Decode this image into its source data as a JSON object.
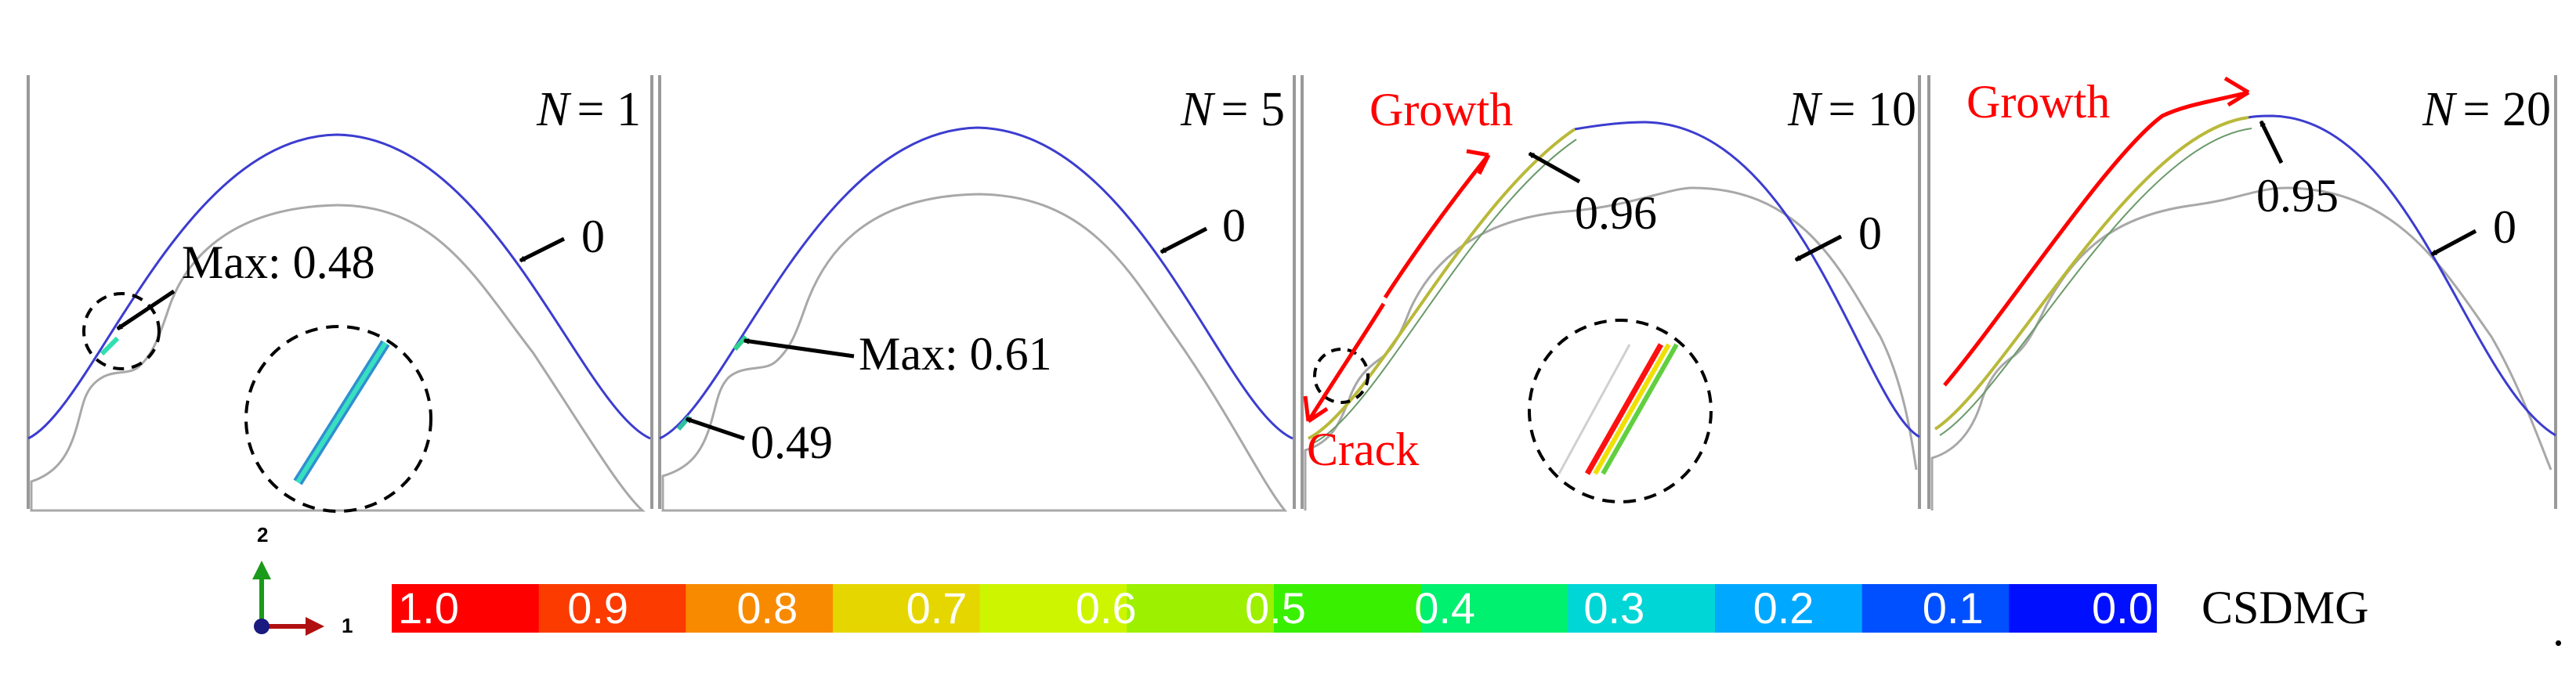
{
  "panels": [
    {
      "label": "N = 1",
      "label_var": "N",
      "label_val": "= 1",
      "max_label": "Max: 0.48",
      "zero_label": "0"
    },
    {
      "label": "N = 5",
      "label_var": "N",
      "label_val": "= 5",
      "max_label": "Max: 0.61",
      "secondary_label": "0.49",
      "zero_label": "0"
    },
    {
      "label": "N = 10",
      "label_var": "N",
      "label_val": "= 10",
      "growth_label": "Growth",
      "crack_label": "Crack",
      "peak_label": "0.96",
      "zero_label": "0"
    },
    {
      "label": "N = 20",
      "label_var": "N",
      "label_val": "= 20",
      "growth_label": "Growth",
      "peak_label": "0.95",
      "zero_label": "0"
    }
  ],
  "colorbar": {
    "title": "CSDMG",
    "ticks": [
      "1.0",
      "0.9",
      "0.8",
      "0.7",
      "0.6",
      "0.5",
      "0.4",
      "0.3",
      "0.2",
      "0.1",
      "0.0"
    ],
    "colors": [
      "#ff0000",
      "#fc3b00",
      "#f88a00",
      "#e6d600",
      "#cdf500",
      "#9cf000",
      "#38f000",
      "#00f070",
      "#00d6d6",
      "#00a8ff",
      "#0050ff",
      "#0010ff"
    ]
  },
  "triad": {
    "axis_1": "1",
    "axis_2": "2"
  },
  "footnote": ".",
  "colors": {
    "annotation": "#ff0000",
    "outer_curve": "#3c3cd0",
    "inner_curve": "#a8a8a8",
    "text": "#000000"
  }
}
